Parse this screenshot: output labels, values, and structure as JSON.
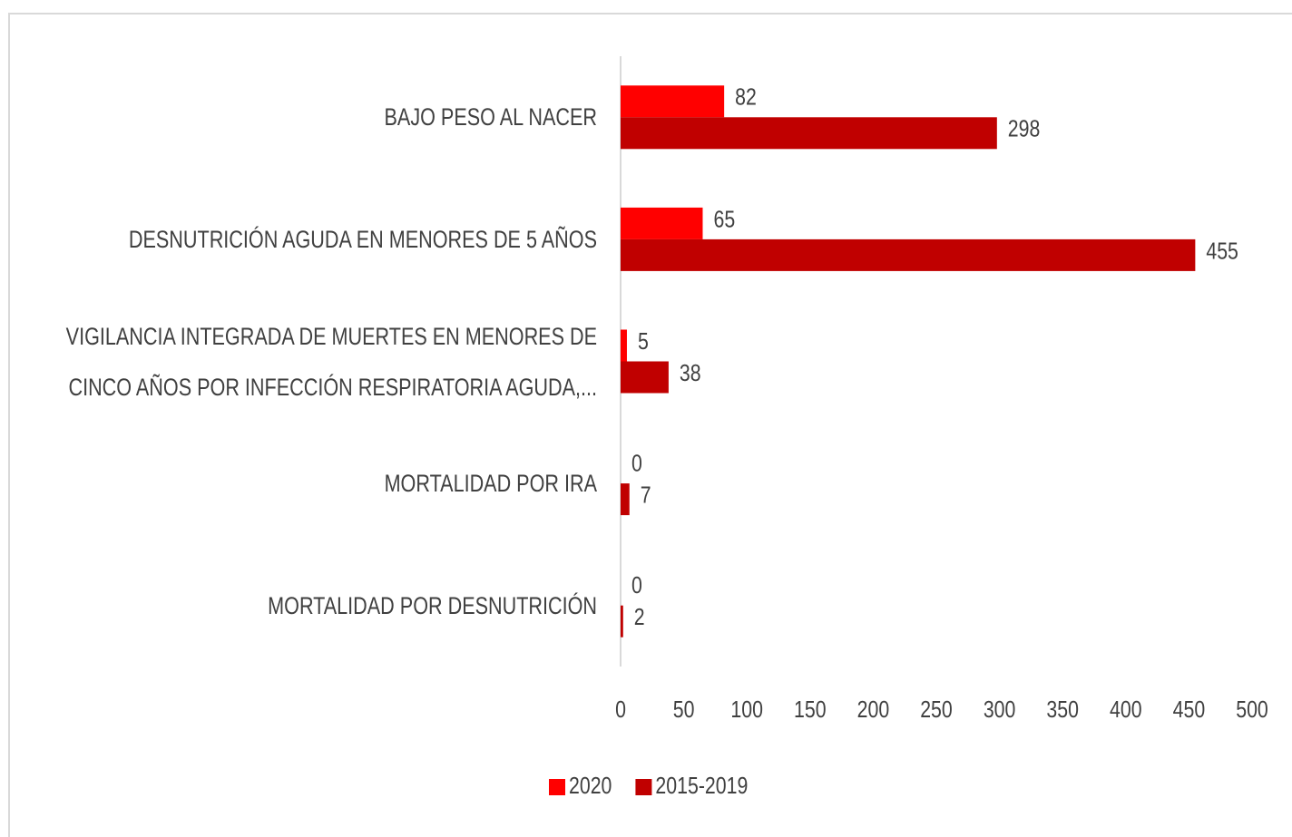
{
  "chart_data": {
    "type": "hbar",
    "categories": [
      "BAJO PESO AL NACER",
      "DESNUTRICIÓN AGUDA EN MENORES DE 5 AÑOS",
      "VIGILANCIA INTEGRADA DE MUERTES EN MENORES DE CINCO AÑOS POR INFECCIÓN RESPIRATORIA AGUDA,...",
      "MORTALIDAD POR IRA",
      "MORTALIDAD POR DESNUTRICIÓN"
    ],
    "series": [
      {
        "name": "2020",
        "color": "#ff0000",
        "values": [
          82,
          65,
          5,
          0,
          0
        ]
      },
      {
        "name": "2015-2019",
        "color": "#c00000",
        "values": [
          298,
          455,
          38,
          7,
          2
        ]
      }
    ],
    "xlim": [
      0,
      500
    ],
    "xticks": [
      0,
      50,
      100,
      150,
      200,
      250,
      300,
      350,
      400,
      450,
      500
    ],
    "legend": "bottom"
  }
}
